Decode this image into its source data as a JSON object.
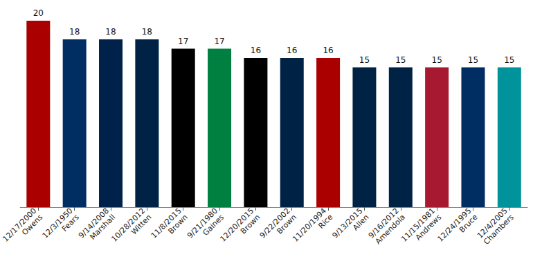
{
  "chart_data": {
    "type": "bar",
    "categories": [
      "12/17/2000\nOwens",
      "12/3/1950\nFears",
      "9/14/2008\nMarshall",
      "10/28/2012\nWitten",
      "11/8/2015\nBrown",
      "9/21/1980\nGaines",
      "12/20/2015\nBrown",
      "9/22/2002\nBrown",
      "11/20/1994\nRice",
      "9/13/2015\nAllen",
      "9/16/2012\nAmendola",
      "11/15/1981\nAndrews",
      "12/24/1995\nBruce",
      "12/4/2005\nChambers"
    ],
    "values": [
      20,
      18,
      18,
      18,
      17,
      17,
      16,
      16,
      16,
      15,
      15,
      15,
      15,
      15
    ],
    "colors": [
      "#aa0000",
      "#002d62",
      "#00224a",
      "#002244",
      "#000000",
      "#008040",
      "#000000",
      "#002244",
      "#aa0000",
      "#002244",
      "#002244",
      "#a71930",
      "#002d62",
      "#00939b"
    ],
    "ylim": [
      0,
      20
    ],
    "data_labels": true,
    "tick_labels": "x"
  }
}
